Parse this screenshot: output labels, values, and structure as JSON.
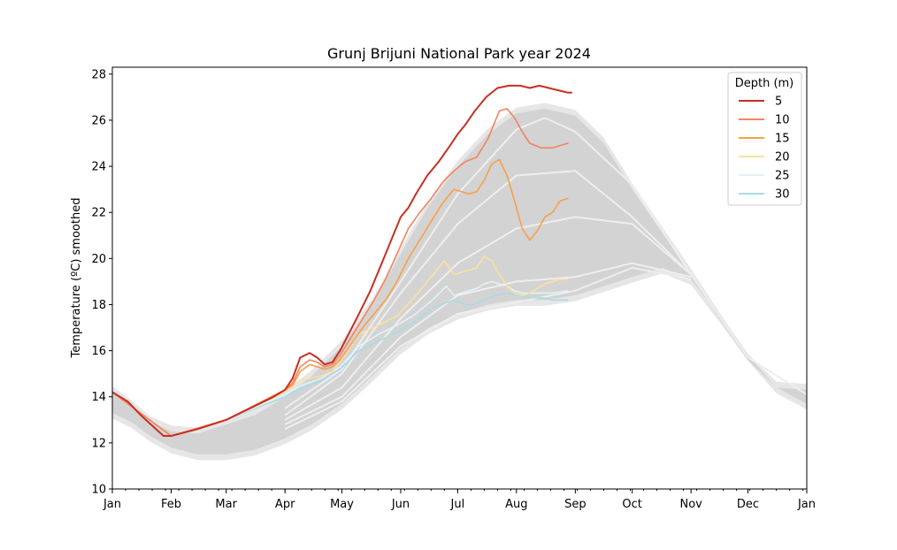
{
  "chart_data": {
    "type": "line",
    "title": "Grunj Brijuni National Park year 2024",
    "xlabel": "",
    "ylabel": "Temperature (ºC) smoothed",
    "ylim": [
      10,
      28.3
    ],
    "xlim": [
      0,
      366
    ],
    "y_ticks": [
      10,
      12,
      14,
      16,
      18,
      20,
      22,
      24,
      26,
      28
    ],
    "x_ticks": [
      {
        "label": "Jan",
        "day": 0
      },
      {
        "label": "Feb",
        "day": 31
      },
      {
        "label": "Mar",
        "day": 60
      },
      {
        "label": "Apr",
        "day": 91
      },
      {
        "label": "May",
        "day": 121
      },
      {
        "label": "Jun",
        "day": 152
      },
      {
        "label": "Jul",
        "day": 182
      },
      {
        "label": "Aug",
        "day": 213
      },
      {
        "label": "Sep",
        "day": 244
      },
      {
        "label": "Oct",
        "day": 274
      },
      {
        "label": "Nov",
        "day": 305
      },
      {
        "label": "Dec",
        "day": 335
      },
      {
        "label": "Jan",
        "day": 366
      }
    ],
    "grid": false,
    "legend": {
      "title": "Depth (m)",
      "placement": "top-right"
    },
    "historical_envelope": {
      "color": "#d3d3d3",
      "outer_color": "#e6e6e6",
      "upper": [
        [
          0,
          14.2
        ],
        [
          10,
          13.6
        ],
        [
          20,
          12.9
        ],
        [
          31,
          12.5
        ],
        [
          45,
          12.4
        ],
        [
          60,
          12.8
        ],
        [
          75,
          13.2
        ],
        [
          91,
          14.0
        ],
        [
          105,
          14.9
        ],
        [
          121,
          16.2
        ],
        [
          137,
          18.0
        ],
        [
          152,
          20.2
        ],
        [
          167,
          22.3
        ],
        [
          182,
          24.0
        ],
        [
          198,
          25.4
        ],
        [
          213,
          26.3
        ],
        [
          228,
          26.5
        ],
        [
          244,
          26.2
        ],
        [
          259,
          25.0
        ],
        [
          274,
          23.0
        ],
        [
          290,
          21.1
        ],
        [
          305,
          19.3
        ],
        [
          320,
          17.4
        ],
        [
          335,
          15.6
        ],
        [
          350,
          14.4
        ],
        [
          366,
          14.3
        ]
      ],
      "lower": [
        [
          0,
          13.3
        ],
        [
          10,
          12.9
        ],
        [
          20,
          12.3
        ],
        [
          31,
          11.8
        ],
        [
          45,
          11.5
        ],
        [
          60,
          11.5
        ],
        [
          75,
          11.7
        ],
        [
          91,
          12.2
        ],
        [
          105,
          12.8
        ],
        [
          121,
          13.7
        ],
        [
          137,
          14.9
        ],
        [
          152,
          16.1
        ],
        [
          167,
          17.0
        ],
        [
          182,
          17.6
        ],
        [
          198,
          18.0
        ],
        [
          213,
          18.2
        ],
        [
          228,
          18.2
        ],
        [
          244,
          18.4
        ],
        [
          259,
          18.8
        ],
        [
          274,
          19.2
        ],
        [
          290,
          19.6
        ],
        [
          305,
          19.1
        ],
        [
          320,
          17.5
        ],
        [
          335,
          15.8
        ],
        [
          350,
          14.4
        ],
        [
          366,
          13.7
        ]
      ],
      "mean_lines": [
        [
          [
            91,
            13.2
          ],
          [
            121,
            15.0
          ],
          [
            152,
            18.5
          ],
          [
            182,
            21.5
          ],
          [
            213,
            23.6
          ],
          [
            244,
            23.8
          ],
          [
            274,
            21.8
          ],
          [
            305,
            19.3
          ]
        ],
        [
          [
            91,
            13.0
          ],
          [
            121,
            14.4
          ],
          [
            152,
            17.4
          ],
          [
            182,
            19.8
          ],
          [
            213,
            21.3
          ],
          [
            244,
            21.8
          ],
          [
            274,
            21.5
          ],
          [
            305,
            19.3
          ]
        ],
        [
          [
            91,
            12.8
          ],
          [
            121,
            14.0
          ],
          [
            152,
            16.6
          ],
          [
            182,
            18.4
          ],
          [
            213,
            19.0
          ],
          [
            244,
            19.2
          ],
          [
            274,
            19.8
          ],
          [
            305,
            19.2
          ]
        ],
        [
          [
            91,
            12.6
          ],
          [
            121,
            13.8
          ],
          [
            152,
            16.2
          ],
          [
            182,
            17.6
          ],
          [
            213,
            18.1
          ],
          [
            244,
            18.6
          ],
          [
            274,
            19.6
          ],
          [
            305,
            19.1
          ]
        ],
        [
          [
            91,
            13.5
          ],
          [
            121,
            15.2
          ],
          [
            152,
            19.0
          ],
          [
            182,
            22.8
          ],
          [
            213,
            25.6
          ],
          [
            228,
            26.1
          ],
          [
            244,
            25.5
          ],
          [
            274,
            23.2
          ],
          [
            305,
            19.3
          ],
          [
            335,
            15.7
          ],
          [
            366,
            14.1
          ]
        ]
      ]
    },
    "series": [
      {
        "name": "5",
        "color": "#c62f22",
        "x": [
          0,
          8,
          15,
          23,
          27,
          31,
          45,
          60,
          75,
          85,
          91,
          95,
          99,
          104,
          108,
          112,
          116,
          120,
          125,
          130,
          136,
          142,
          148,
          152,
          156,
          160,
          166,
          172,
          178,
          182,
          186,
          191,
          197,
          203,
          209,
          215,
          220,
          225,
          230,
          235,
          240,
          242,
          240
        ],
        "values": [
          14.2,
          13.8,
          13.2,
          12.6,
          12.3,
          12.3,
          12.6,
          13.0,
          13.6,
          14.0,
          14.3,
          14.8,
          15.7,
          15.9,
          15.7,
          15.4,
          15.5,
          16.0,
          16.8,
          17.6,
          18.6,
          19.8,
          21.0,
          21.8,
          22.2,
          22.8,
          23.6,
          24.2,
          24.9,
          25.4,
          25.8,
          26.4,
          27.0,
          27.4,
          27.5,
          27.5,
          27.4,
          27.5,
          27.4,
          27.3,
          27.2,
          27.2,
          27.2
        ]
      },
      {
        "name": "10",
        "color": "#f4845f",
        "x": [
          0,
          31,
          60,
          91,
          95,
          99,
          104,
          108,
          112,
          116,
          120,
          126,
          132,
          138,
          144,
          150,
          156,
          162,
          168,
          174,
          180,
          186,
          192,
          198,
          204,
          208,
          212,
          216,
          220,
          226,
          232,
          236,
          240
        ],
        "values": [
          14.2,
          12.3,
          13.0,
          14.3,
          14.6,
          15.3,
          15.6,
          15.5,
          15.3,
          15.4,
          15.8,
          16.6,
          17.4,
          18.2,
          19.1,
          20.2,
          21.3,
          22.0,
          22.6,
          23.3,
          23.8,
          24.2,
          24.4,
          25.2,
          26.4,
          26.5,
          26.1,
          25.5,
          25.0,
          24.8,
          24.8,
          24.9,
          25.0
        ]
      },
      {
        "name": "15",
        "color": "#f8a048",
        "x": [
          0,
          31,
          60,
          91,
          95,
          99,
          104,
          108,
          112,
          116,
          120,
          126,
          132,
          138,
          144,
          150,
          156,
          162,
          168,
          174,
          180,
          184,
          188,
          192,
          196,
          200,
          204,
          208,
          212,
          216,
          220,
          224,
          228,
          232,
          236,
          240
        ],
        "values": [
          14.2,
          12.3,
          13.0,
          14.3,
          14.5,
          15.1,
          15.4,
          15.3,
          15.2,
          15.3,
          15.6,
          16.3,
          17.0,
          17.6,
          18.2,
          19.0,
          20.0,
          20.8,
          21.6,
          22.4,
          23.0,
          22.9,
          22.8,
          22.9,
          23.4,
          24.1,
          24.3,
          23.6,
          22.5,
          21.3,
          20.8,
          21.2,
          21.8,
          22.0,
          22.5,
          22.6
        ]
      },
      {
        "name": "20",
        "color": "#fde0a0",
        "x": [
          0,
          31,
          60,
          91,
          99,
          104,
          110,
          116,
          120,
          130,
          140,
          150,
          160,
          170,
          175,
          180,
          184,
          188,
          192,
          196,
          200,
          204,
          208,
          212,
          216,
          220,
          224,
          228,
          232,
          236,
          240
        ],
        "values": [
          14.2,
          12.3,
          13.0,
          14.2,
          14.7,
          14.8,
          14.9,
          15.1,
          15.5,
          16.7,
          17.1,
          17.5,
          18.4,
          19.4,
          19.9,
          19.3,
          19.4,
          19.5,
          19.6,
          20.1,
          19.9,
          19.3,
          18.8,
          18.5,
          18.4,
          18.5,
          18.7,
          18.9,
          19.0,
          19.1,
          19.1
        ]
      },
      {
        "name": "25",
        "color": "#e0f3f8",
        "x": [
          0,
          31,
          60,
          91,
          100,
          110,
          120,
          130,
          140,
          150,
          160,
          170,
          176,
          180,
          184,
          188,
          192,
          196,
          200,
          204,
          208,
          212,
          216,
          220,
          226,
          232,
          240
        ],
        "values": [
          14.2,
          12.3,
          13.0,
          14.1,
          14.5,
          14.8,
          15.3,
          16.2,
          16.7,
          17.1,
          17.6,
          18.3,
          18.8,
          18.4,
          18.5,
          18.6,
          18.7,
          18.9,
          19.0,
          18.9,
          18.8,
          18.6,
          18.5,
          18.5,
          18.5,
          18.5,
          18.6
        ]
      },
      {
        "name": "30",
        "color": "#a8dbe8",
        "x": [
          0,
          31,
          60,
          91,
          100,
          110,
          120,
          130,
          140,
          150,
          160,
          170,
          180,
          186,
          190,
          196,
          202,
          208,
          214,
          220,
          226,
          232,
          240
        ],
        "values": [
          14.2,
          12.3,
          13.0,
          14.0,
          14.4,
          14.7,
          15.2,
          16.0,
          16.4,
          16.8,
          17.3,
          17.9,
          18.2,
          18.0,
          18.0,
          18.2,
          18.4,
          18.5,
          18.4,
          18.3,
          18.3,
          18.2,
          18.2
        ]
      }
    ]
  }
}
